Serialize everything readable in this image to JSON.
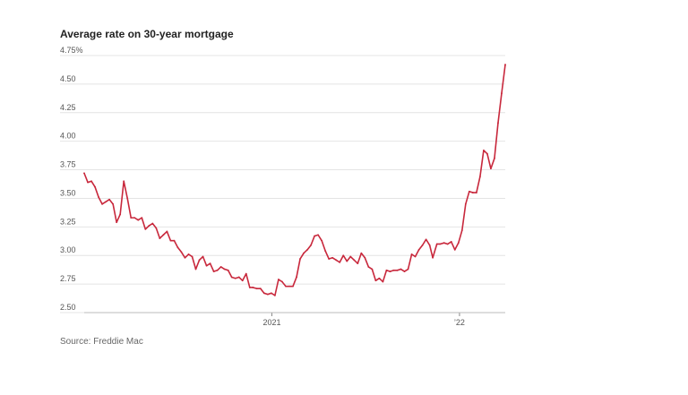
{
  "title": "Average rate on 30-year mortgage",
  "source": "Source: Freddie Mac",
  "chart_data": {
    "type": "line",
    "title": "Average rate on 30-year mortgage",
    "xlabel": "",
    "ylabel": "",
    "ylim": [
      2.5,
      4.75
    ],
    "y_ticks": [
      2.5,
      2.75,
      3.0,
      3.25,
      3.5,
      3.75,
      4.0,
      4.25,
      4.5,
      4.75
    ],
    "y_tick_labels": [
      "2.50",
      "2.75",
      "3.00",
      "3.25",
      "3.50",
      "3.75",
      "4.00",
      "4.25",
      "4.50",
      "4.75%"
    ],
    "xlim": [
      "2020-01-02",
      "2022-03-31"
    ],
    "x_ticks": [
      "2021-01-01",
      "2022-01-01"
    ],
    "x_tick_labels": [
      "2021",
      "’22"
    ],
    "grid": true,
    "line_color": "#c8283c",
    "series": [
      {
        "x": [
          "2020-01-02",
          "2020-01-09",
          "2020-01-16",
          "2020-01-23",
          "2020-01-30",
          "2020-02-06",
          "2020-02-13",
          "2020-02-20",
          "2020-02-27",
          "2020-03-05",
          "2020-03-12",
          "2020-03-19",
          "2020-03-26",
          "2020-04-02",
          "2020-04-09",
          "2020-04-16",
          "2020-04-23",
          "2020-04-30",
          "2020-05-07",
          "2020-05-14",
          "2020-05-21",
          "2020-05-28",
          "2020-06-04",
          "2020-06-11",
          "2020-06-18",
          "2020-06-25",
          "2020-07-02",
          "2020-07-09",
          "2020-07-16",
          "2020-07-23",
          "2020-07-30",
          "2020-08-06",
          "2020-08-13",
          "2020-08-20",
          "2020-08-27",
          "2020-09-03",
          "2020-09-10",
          "2020-09-17",
          "2020-09-24",
          "2020-10-01",
          "2020-10-08",
          "2020-10-15",
          "2020-10-22",
          "2020-10-29",
          "2020-11-05",
          "2020-11-12",
          "2020-11-19",
          "2020-11-25",
          "2020-12-03",
          "2020-12-10",
          "2020-12-17",
          "2020-12-24",
          "2020-12-31",
          "2021-01-07",
          "2021-01-14",
          "2021-01-21",
          "2021-01-28",
          "2021-02-04",
          "2021-02-11",
          "2021-02-18",
          "2021-02-25",
          "2021-03-04",
          "2021-03-11",
          "2021-03-18",
          "2021-03-25",
          "2021-04-01",
          "2021-04-08",
          "2021-04-15",
          "2021-04-22",
          "2021-04-29",
          "2021-05-06",
          "2021-05-13",
          "2021-05-20",
          "2021-05-27",
          "2021-06-03",
          "2021-06-10",
          "2021-06-17",
          "2021-06-24",
          "2021-07-01",
          "2021-07-08",
          "2021-07-15",
          "2021-07-22",
          "2021-07-29",
          "2021-08-05",
          "2021-08-12",
          "2021-08-19",
          "2021-08-26",
          "2021-09-02",
          "2021-09-09",
          "2021-09-16",
          "2021-09-23",
          "2021-09-30",
          "2021-10-07",
          "2021-10-14",
          "2021-10-21",
          "2021-10-28",
          "2021-11-04",
          "2021-11-10",
          "2021-11-18",
          "2021-11-24",
          "2021-12-02",
          "2021-12-09",
          "2021-12-16",
          "2021-12-23",
          "2021-12-30",
          "2022-01-06",
          "2022-01-13",
          "2022-01-20",
          "2022-01-27",
          "2022-02-03",
          "2022-02-10",
          "2022-02-17",
          "2022-02-24",
          "2022-03-03",
          "2022-03-10",
          "2022-03-17",
          "2022-03-24",
          "2022-03-31"
        ],
        "y": [
          3.72,
          3.64,
          3.65,
          3.6,
          3.51,
          3.45,
          3.47,
          3.49,
          3.45,
          3.29,
          3.36,
          3.65,
          3.5,
          3.33,
          3.33,
          3.31,
          3.33,
          3.23,
          3.26,
          3.28,
          3.24,
          3.15,
          3.18,
          3.21,
          3.13,
          3.13,
          3.07,
          3.03,
          2.98,
          3.01,
          2.99,
          2.88,
          2.96,
          2.99,
          2.91,
          2.93,
          2.86,
          2.87,
          2.9,
          2.88,
          2.87,
          2.81,
          2.8,
          2.81,
          2.78,
          2.84,
          2.72,
          2.72,
          2.71,
          2.71,
          2.67,
          2.66,
          2.67,
          2.65,
          2.79,
          2.77,
          2.73,
          2.73,
          2.73,
          2.81,
          2.97,
          3.02,
          3.05,
          3.09,
          3.17,
          3.18,
          3.13,
          3.04,
          2.97,
          2.98,
          2.96,
          2.94,
          3.0,
          2.95,
          2.99,
          2.96,
          2.93,
          3.02,
          2.98,
          2.9,
          2.88,
          2.78,
          2.8,
          2.77,
          2.87,
          2.86,
          2.87,
          2.87,
          2.88,
          2.86,
          2.88,
          3.01,
          2.99,
          3.05,
          3.09,
          3.14,
          3.09,
          2.98,
          3.1,
          3.1,
          3.11,
          3.1,
          3.12,
          3.05,
          3.11,
          3.22,
          3.45,
          3.56,
          3.55,
          3.55,
          3.69,
          3.92,
          3.89,
          3.76,
          3.85,
          4.16,
          4.42,
          4.67
        ]
      }
    ]
  }
}
